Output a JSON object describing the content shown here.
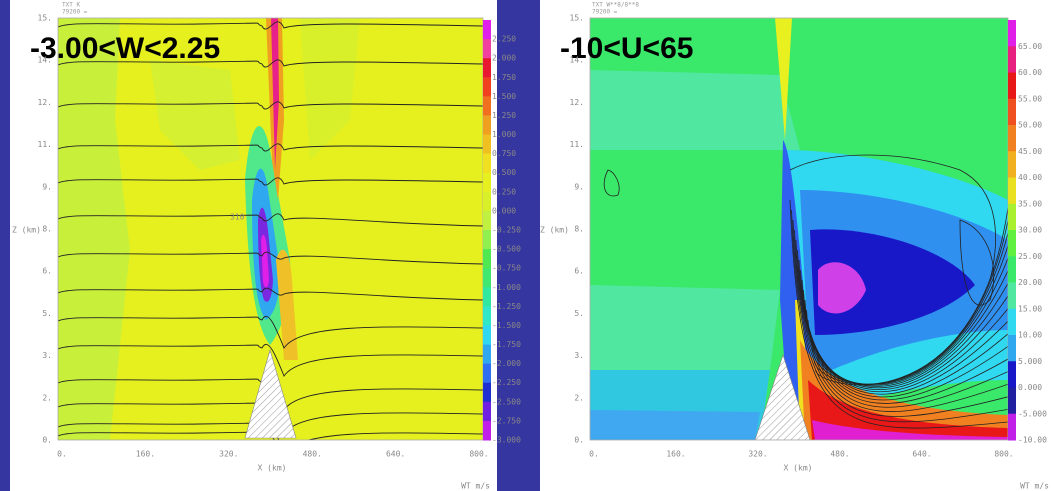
{
  "panels": [
    {
      "title": "-3.00<W<2.25",
      "header": [
        "TXT K",
        "79200  ="
      ],
      "y_axis_label": "Z (km)",
      "x_axis_label": "X (km)",
      "y_ticks": [
        "15.",
        "14.",
        "12.",
        "11.",
        "9.",
        "8.",
        "6.",
        "5.",
        "3.",
        "2.",
        "0."
      ],
      "x_ticks": [
        "0.",
        "160.",
        "320.",
        "480.",
        "640.",
        "800."
      ],
      "contour_label": "310",
      "colorbar_labels": [
        "2.250",
        "2.000",
        "1.750",
        "1.500",
        "1.250",
        "1.000",
        "0.750",
        "0.500",
        "0.250",
        "0.000",
        "-0.250",
        "-0.500",
        "-0.750",
        "-1.000",
        "-1.250",
        "-1.500",
        "-1.750",
        "-2.000",
        "-2.250",
        "-2.500",
        "-2.750",
        "-3.000"
      ],
      "units": "WT m/s"
    },
    {
      "title": "-10<U<65",
      "header": [
        "TXT W**8/8**8",
        "79200  ="
      ],
      "y_axis_label": "Z (km)",
      "x_axis_label": "X (km)",
      "y_ticks": [
        "15.",
        "14.",
        "12.",
        "11.",
        "9.",
        "8.",
        "6.",
        "5.",
        "3.",
        "2.",
        "0."
      ],
      "x_ticks": [
        "0.",
        "160.",
        "320.",
        "480.",
        "640.",
        "800."
      ],
      "colorbar_labels": [
        "65.00",
        "60.00",
        "55.00",
        "50.00",
        "45.00",
        "40.00",
        "35.00",
        "30.00",
        "25.00",
        "20.00",
        "15.00",
        "10.00",
        "5.000",
        "0.000",
        "-5.000",
        "-10.00"
      ],
      "units": "WT m/s"
    }
  ]
}
